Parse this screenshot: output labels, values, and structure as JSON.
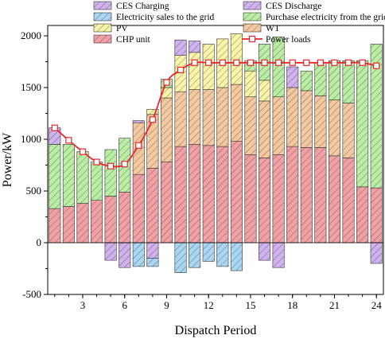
{
  "chart_data": {
    "type": "bar",
    "stacked": true,
    "xlabel": "Dispatch Period",
    "ylabel": "Power/kW",
    "ylim": [
      -500,
      2100
    ],
    "yticks": [
      -500,
      0,
      500,
      1000,
      1500,
      2000
    ],
    "xlim": [
      0.5,
      24.5
    ],
    "xticks": [
      3,
      6,
      9,
      12,
      15,
      18,
      21,
      24
    ],
    "x": [
      1,
      2,
      3,
      4,
      5,
      6,
      7,
      8,
      9,
      10,
      11,
      12,
      13,
      14,
      15,
      16,
      17,
      18,
      19,
      20,
      21,
      22,
      23,
      24
    ],
    "grid": false,
    "legend_position": "top",
    "series": [
      {
        "name": "CHP unit",
        "key": "chp",
        "color": "#f2a0a4",
        "values": [
          330,
          350,
          380,
          410,
          450,
          490,
          660,
          720,
          780,
          930,
          950,
          940,
          930,
          980,
          850,
          820,
          850,
          930,
          920,
          920,
          840,
          820,
          540,
          530
        ]
      },
      {
        "name": "WT",
        "key": "wt",
        "color": "#f5c9a0",
        "values": [
          0,
          0,
          0,
          0,
          0,
          0,
          500,
          520,
          620,
          530,
          530,
          540,
          570,
          550,
          560,
          550,
          560,
          570,
          550,
          500,
          540,
          530,
          0,
          0
        ]
      },
      {
        "name": "PV",
        "key": "pv",
        "color": "#faf4a8",
        "values": [
          0,
          0,
          0,
          0,
          0,
          0,
          0,
          50,
          100,
          350,
          360,
          440,
          470,
          490,
          250,
          200,
          0,
          0,
          0,
          0,
          0,
          0,
          0,
          0
        ]
      },
      {
        "name": "Purchase electricity from the grid",
        "key": "grid_buy",
        "color": "#b9eea4",
        "values": [
          620,
          600,
          500,
          370,
          450,
          520,
          0,
          0,
          80,
          0,
          0,
          0,
          0,
          0,
          100,
          350,
          580,
          0,
          190,
          320,
          380,
          410,
          1220,
          1390
        ]
      },
      {
        "name": "CES Discharge",
        "key": "ces_dis",
        "color": "#d0b2ee",
        "values": [
          160,
          0,
          0,
          0,
          0,
          0,
          20,
          0,
          0,
          150,
          110,
          0,
          0,
          0,
          0,
          0,
          0,
          200,
          0,
          0,
          0,
          0,
          0,
          0
        ]
      },
      {
        "name": "CES Charging",
        "key": "ces_chg",
        "color": "#d0b2ee",
        "values": [
          0,
          0,
          0,
          0,
          -170,
          -240,
          0,
          -150,
          0,
          0,
          0,
          0,
          0,
          0,
          0,
          -170,
          -240,
          0,
          0,
          0,
          0,
          0,
          0,
          -200
        ]
      },
      {
        "name": "Electricity sales to the grid",
        "key": "grid_sell",
        "color": "#a9d7f3",
        "values": [
          0,
          0,
          0,
          0,
          0,
          0,
          -230,
          -80,
          0,
          -290,
          -240,
          -180,
          -230,
          -270,
          0,
          0,
          0,
          0,
          0,
          0,
          0,
          0,
          0,
          0
        ]
      }
    ],
    "power_loads": {
      "name": "Power loads",
      "color": "#e8252b",
      "values": [
        1110,
        990,
        880,
        780,
        740,
        760,
        940,
        1190,
        1550,
        1670,
        1740,
        1740,
        1740,
        1740,
        1740,
        1740,
        1740,
        1740,
        1740,
        1740,
        1740,
        1740,
        1740,
        1710
      ]
    },
    "legend": [
      {
        "key": "ces_chg",
        "label": "CES Charging",
        "color": "#d0b2ee"
      },
      {
        "key": "ces_dis",
        "label": "CES Discharge",
        "color": "#d0b2ee"
      },
      {
        "key": "grid_sell",
        "label": "Electricity sales to the grid",
        "color": "#a9d7f3"
      },
      {
        "key": "grid_buy",
        "label": "Purchase electricity from the grid",
        "color": "#b9eea4"
      },
      {
        "key": "pv",
        "label": "PV",
        "color": "#faf4a8"
      },
      {
        "key": "wt",
        "label": "WT",
        "color": "#f5c9a0"
      },
      {
        "key": "chp",
        "label": "CHP unit",
        "color": "#f2a0a4"
      },
      {
        "key": "loads",
        "label": "Power loads",
        "color": "#e8252b"
      }
    ]
  }
}
